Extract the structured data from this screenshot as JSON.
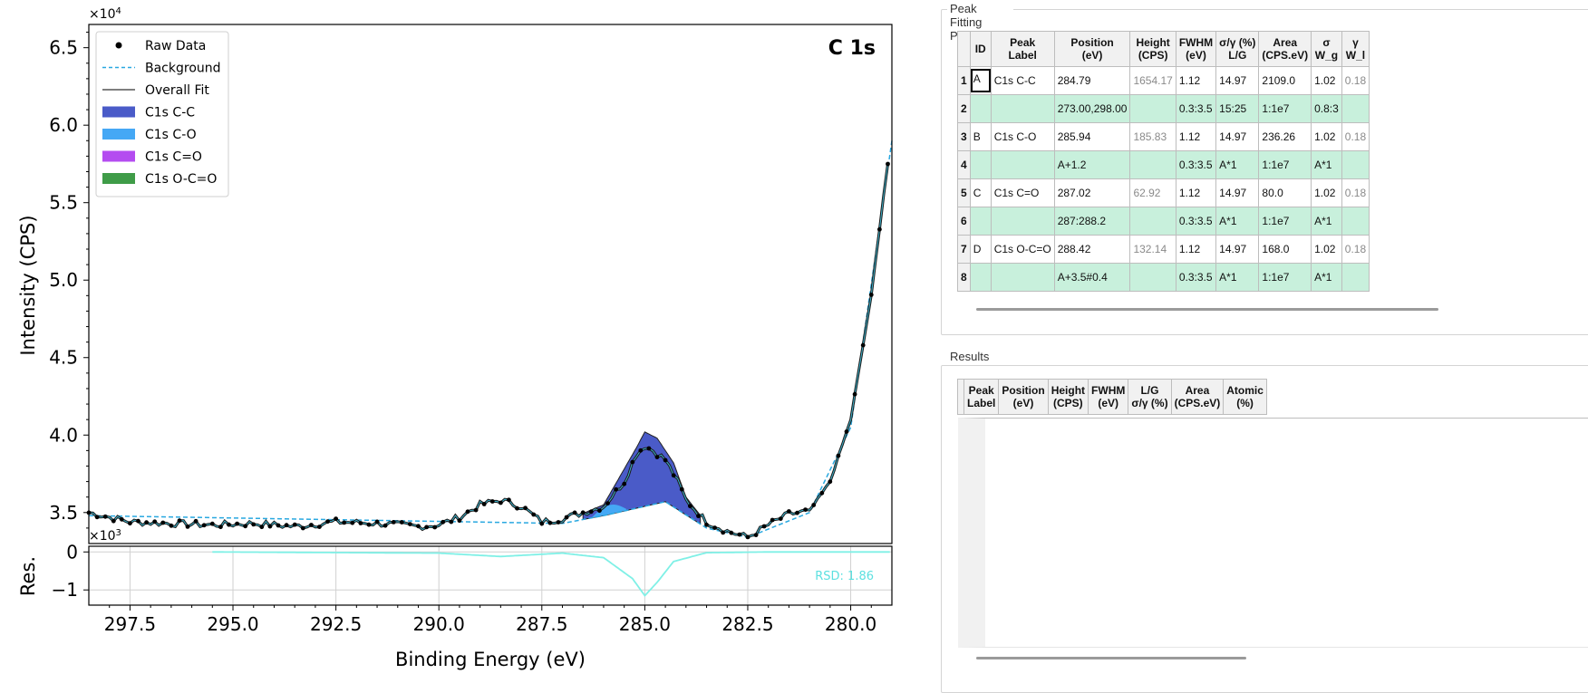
{
  "plot": {
    "title": "C 1s",
    "ylabel": "Intensity (CPS)",
    "xlabel": "Binding Energy (eV)",
    "res_label": "Res.",
    "y_multiplier": "×10",
    "y_multiplier_exp": "4",
    "res_multiplier": "×10",
    "res_multiplier_exp": "3",
    "rsd_text": "RSD: 1.86",
    "y_ticks": [
      "6.5",
      "6.0",
      "5.5",
      "5.0",
      "4.5",
      "4.0",
      "3.5"
    ],
    "res_ticks": [
      "0",
      "-1"
    ],
    "x_ticks": [
      "297.5",
      "295.0",
      "292.5",
      "290.0",
      "287.5",
      "285.0",
      "282.5",
      "280.0"
    ],
    "legend": [
      {
        "label": "Raw Data",
        "kind": "marker",
        "color": "#000000"
      },
      {
        "label": "Background",
        "kind": "dashed",
        "color": "#29a8e0"
      },
      {
        "label": "Overall Fit",
        "kind": "line",
        "color": "#555555"
      },
      {
        "label": "C1s C-C",
        "kind": "patch",
        "color": "#4a5bc8"
      },
      {
        "label": "C1s C-O",
        "kind": "patch",
        "color": "#45a8f5"
      },
      {
        "label": "C1s C=O",
        "kind": "patch",
        "color": "#b44cf0"
      },
      {
        "label": "C1s O-C=O",
        "kind": "patch",
        "color": "#3f9c48"
      }
    ]
  },
  "chart_data": {
    "type": "line",
    "xlabel": "Binding Energy (eV)",
    "ylabel": "Intensity (CPS)",
    "xlim": [
      298.5,
      279.0
    ],
    "ylim": [
      33000,
      66500
    ],
    "x_reversed": true,
    "grid": false,
    "legend_position": "top-left",
    "series": [
      {
        "name": "Raw Data",
        "x": [
          298.5,
          297.5,
          296.5,
          295.5,
          294.5,
          293.5,
          292.5,
          291.5,
          290.5,
          290.0,
          289.5,
          289.0,
          288.5,
          288.0,
          287.5,
          287.0,
          286.5,
          286.0,
          285.5,
          285.2,
          285.0,
          284.8,
          284.5,
          284.2,
          284.0,
          283.5,
          283.0,
          282.5,
          282.0,
          281.5,
          281.0,
          280.5,
          280.0,
          279.5,
          279.2,
          279.0
        ],
        "y": [
          35000,
          34400,
          34300,
          34200,
          34300,
          34100,
          34400,
          34300,
          34100,
          34200,
          34700,
          35500,
          35800,
          35400,
          34400,
          34600,
          35000,
          35400,
          37000,
          38800,
          39300,
          39000,
          38400,
          37000,
          35800,
          34400,
          33800,
          33400,
          34200,
          34900,
          35100,
          37000,
          41000,
          49000,
          55500,
          59500
        ]
      },
      {
        "name": "Background",
        "x": [
          298.5,
          287.0,
          286.0,
          284.5,
          283.5,
          282.5,
          281.0,
          280.0,
          279.0
        ],
        "y": [
          34800,
          34300,
          34800,
          35700,
          34000,
          33400,
          35000,
          40500,
          59000
        ]
      },
      {
        "name": "Overall Fit",
        "x": [
          298.5,
          287.0,
          286.0,
          285.2,
          285.0,
          284.7,
          284.3,
          284.0,
          283.5,
          283.0,
          282.5,
          281.0,
          280.0,
          279.0
        ],
        "y": [
          34900,
          34400,
          35500,
          39200,
          40200,
          39800,
          38200,
          36000,
          34300,
          33800,
          33400,
          35000,
          41000,
          59500
        ]
      }
    ],
    "residual": {
      "name": "Residual",
      "x": [
        295.5,
        290.0,
        288.5,
        287.0,
        286.0,
        285.3,
        285.0,
        284.7,
        284.3,
        283.5,
        282.0,
        279.0
      ],
      "y": [
        0,
        -30,
        -120,
        -30,
        -150,
        -700,
        -1150,
        -800,
        -250,
        -20,
        0,
        0
      ],
      "ylim": [
        -1400,
        150
      ],
      "rsd": "RSD: 1.86"
    }
  },
  "peak_fitting": {
    "title": "Peak Fitting Parameters",
    "headers": [
      {
        "l1": "ID",
        "l2": ""
      },
      {
        "l1": "Peak",
        "l2": "Label"
      },
      {
        "l1": "Position",
        "l2": "(eV)"
      },
      {
        "l1": "Height",
        "l2": "(CPS)"
      },
      {
        "l1": "FWHM",
        "l2": "(eV)"
      },
      {
        "l1": "σ/γ (%)",
        "l2": "L/G"
      },
      {
        "l1": "Area",
        "l2": "(CPS.eV)"
      },
      {
        "l1": "σ",
        "l2": "W_g"
      },
      {
        "l1": "γ",
        "l2": "W_l"
      }
    ],
    "rows": [
      {
        "num": "1",
        "id": "A",
        "label": "C1s C-C",
        "position": "284.79",
        "height": "1654.17",
        "fwhm": "1.12",
        "lg": "14.97",
        "area": "2109.0",
        "wg": "1.02",
        "wl": "0.18",
        "constraint": false
      },
      {
        "num": "2",
        "id": "",
        "label": "",
        "position": "273.00,298.00",
        "height": "",
        "fwhm": "0.3:3.5",
        "lg": "15:25",
        "area": "1:1e7",
        "wg": "0.8:3",
        "wl": "",
        "constraint": true
      },
      {
        "num": "3",
        "id": "B",
        "label": "C1s C-O",
        "position": "285.94",
        "height": "185.83",
        "fwhm": "1.12",
        "lg": "14.97",
        "area": "236.26",
        "wg": "1.02",
        "wl": "0.18",
        "constraint": false
      },
      {
        "num": "4",
        "id": "",
        "label": "",
        "position": "A+1.2",
        "height": "",
        "fwhm": "0.3:3.5",
        "lg": "A*1",
        "area": "1:1e7",
        "wg": "A*1",
        "wl": "",
        "constraint": true
      },
      {
        "num": "5",
        "id": "C",
        "label": "C1s C=O",
        "position": "287.02",
        "height": "62.92",
        "fwhm": "1.12",
        "lg": "14.97",
        "area": "80.0",
        "wg": "1.02",
        "wl": "0.18",
        "constraint": false
      },
      {
        "num": "6",
        "id": "",
        "label": "",
        "position": "287:288.2",
        "height": "",
        "fwhm": "0.3:3.5",
        "lg": "A*1",
        "area": "1:1e7",
        "wg": "A*1",
        "wl": "",
        "constraint": true
      },
      {
        "num": "7",
        "id": "D",
        "label": "C1s O-C=O",
        "position": "288.42",
        "height": "132.14",
        "fwhm": "1.12",
        "lg": "14.97",
        "area": "168.0",
        "wg": "1.02",
        "wl": "0.18",
        "constraint": false
      },
      {
        "num": "8",
        "id": "",
        "label": "",
        "position": "A+3.5#0.4",
        "height": "",
        "fwhm": "0.3:3.5",
        "lg": "A*1",
        "area": "1:1e7",
        "wg": "A*1",
        "wl": "",
        "constraint": true
      }
    ]
  },
  "results": {
    "title": "Results",
    "headers": [
      {
        "l1": "Peak",
        "l2": "Label"
      },
      {
        "l1": "Position",
        "l2": "(eV)"
      },
      {
        "l1": "Height",
        "l2": "(CPS)"
      },
      {
        "l1": "FWHM",
        "l2": "(eV)"
      },
      {
        "l1": "L/G",
        "l2": "σ/γ (%)"
      },
      {
        "l1": "Area",
        "l2": "(CPS.eV)"
      },
      {
        "l1": "Atomic",
        "l2": "(%)"
      }
    ]
  }
}
